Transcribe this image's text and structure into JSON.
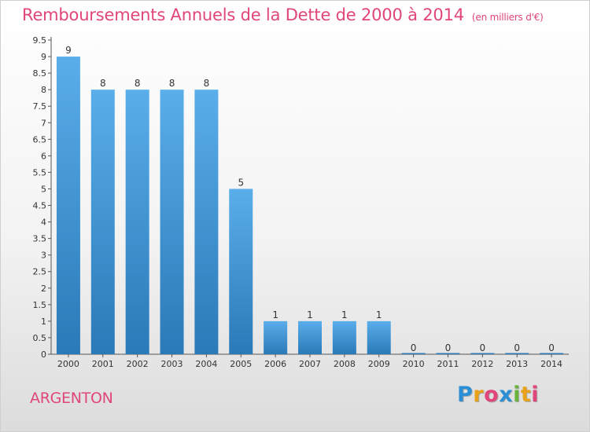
{
  "title": "Remboursements Annuels de la Dette de 2000 à 2014",
  "unit": "(en milliers d'€)",
  "commune": "ARGENTON",
  "brand": "Proxiti",
  "colors": {
    "bar_top": "#5aaeea",
    "bar_bottom": "#2a79b8",
    "title": "#e0457b",
    "brand": [
      "#2a8fd6",
      "#e8a21a",
      "#e0457b",
      "#2a8fd6",
      "#6cb33e",
      "#e8a21a",
      "#e0457b"
    ]
  },
  "chart_data": {
    "type": "bar",
    "title": "Remboursements Annuels de la Dette de 2000 à 2014",
    "ylabel": "",
    "xlabel": "",
    "categories": [
      "2000",
      "2001",
      "2002",
      "2003",
      "2004",
      "2005",
      "2006",
      "2007",
      "2008",
      "2009",
      "2010",
      "2011",
      "2012",
      "2013",
      "2014"
    ],
    "values": [
      9,
      8,
      8,
      8,
      8,
      5,
      1,
      1,
      1,
      1,
      0,
      0,
      0,
      0,
      0
    ],
    "value_labels": [
      "9",
      "8",
      "8",
      "8",
      "8",
      "5",
      "1",
      "1",
      "1",
      "1",
      "0",
      "0",
      "0",
      "0",
      "0"
    ],
    "y_ticks": [
      "0",
      "0.5",
      "1",
      "1.5",
      "2",
      "2.5",
      "3",
      "3.5",
      "4",
      "4.5",
      "5",
      "5.5",
      "6",
      "6.5",
      "7",
      "7.5",
      "8",
      "8.5",
      "9",
      "9.5"
    ],
    "ylim": [
      0,
      9.5
    ],
    "grid": false,
    "legend": "none"
  }
}
